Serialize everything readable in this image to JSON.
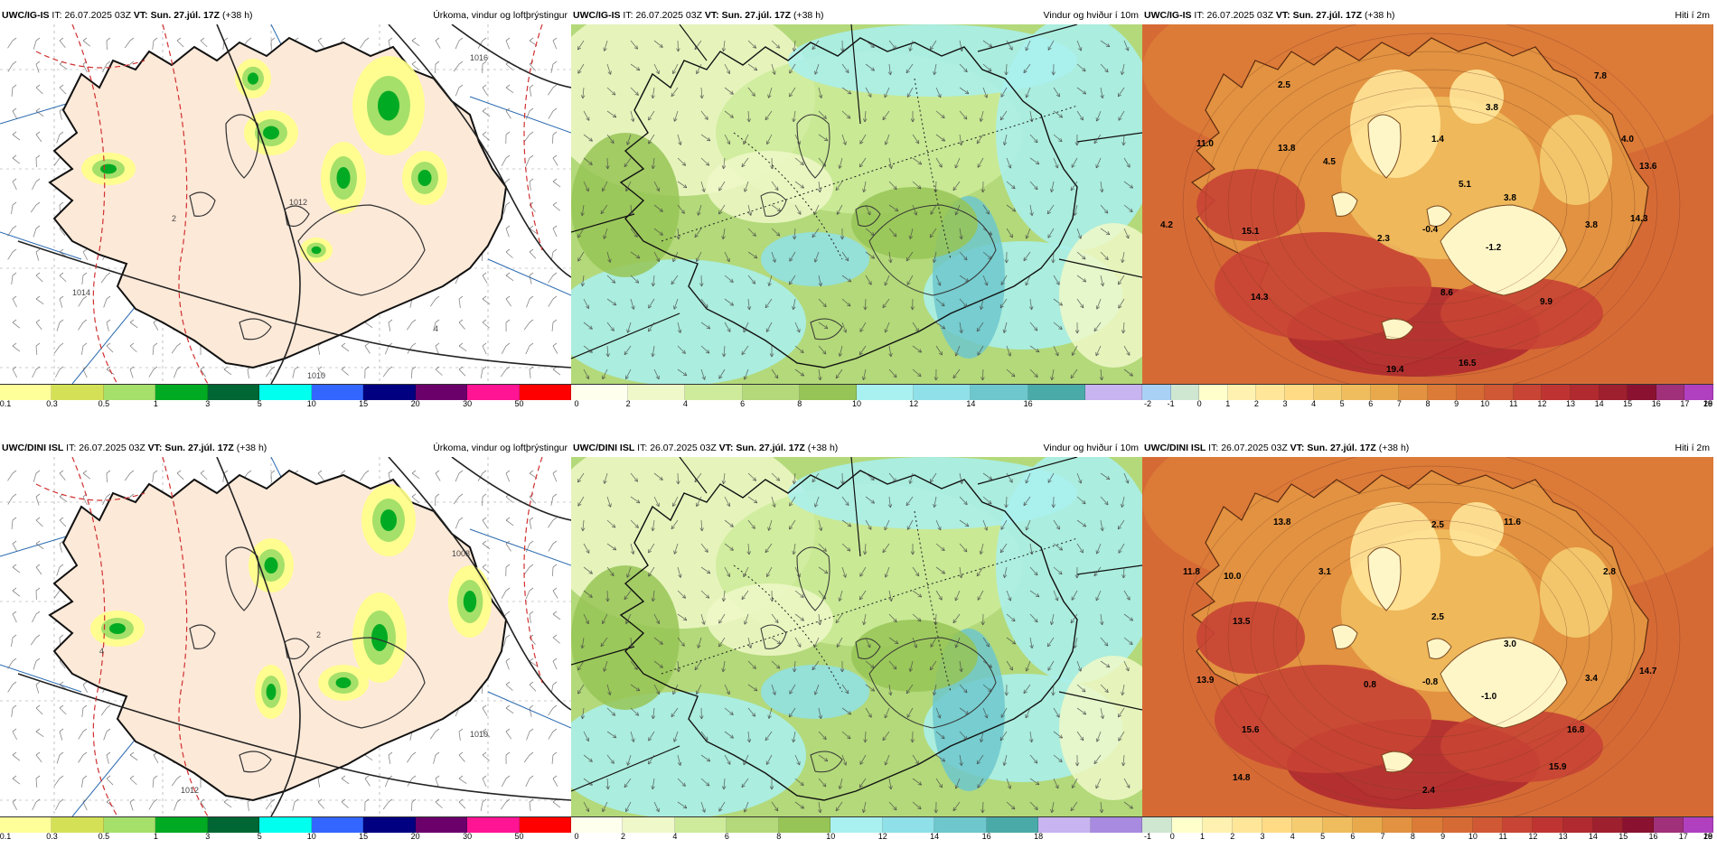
{
  "panels": [
    {
      "model": "UWC/IG-IS",
      "it_label": "IT:",
      "it": "26.07.2025 03Z",
      "vt_label": "VT:",
      "vt": "Sun. 27.júl. 17Z",
      "lead": "(+38 h)",
      "title": "Úrkoma, vindur og loftþrýstingur",
      "type": "precip",
      "colors": [
        "#ffff99",
        "#d4e157",
        "#a5e06a",
        "#00aa22",
        "#006633",
        "#00ffee",
        "#3366ff",
        "#000080",
        "#6b006b",
        "#ff1493",
        "#ff0000"
      ],
      "ticks": [
        "0.1",
        "0.3",
        "0.5",
        "1",
        "3",
        "5",
        "10",
        "15",
        "20",
        "30",
        "50"
      ],
      "map_labels": [
        {
          "text": "1012"
        },
        {
          "text": "1014"
        },
        {
          "text": "1010"
        },
        {
          "text": "1016"
        },
        {
          "text": "2"
        },
        {
          "text": "4"
        }
      ]
    },
    {
      "model": "UWC/IG-IS",
      "it_label": "IT:",
      "it": "26.07.2025 03Z",
      "vt_label": "VT:",
      "vt": "Sun. 27.júl. 17Z",
      "lead": "(+38 h)",
      "title": "Vindur og hviður í 10m",
      "type": "wind",
      "colors": [
        "#ffffee",
        "#eef8c8",
        "#cdeb9a",
        "#b3d97a",
        "#96c456",
        "#a9f0f0",
        "#8fe0e8",
        "#6dc7cc",
        "#4aaaa8",
        "#c8b4f0"
      ],
      "ticks": [
        "0",
        "2",
        "4",
        "6",
        "8",
        "10",
        "12",
        "14",
        "16"
      ]
    },
    {
      "model": "UWC/IG-IS",
      "it_label": "IT:",
      "it": "26.07.2025 03Z",
      "vt_label": "VT:",
      "vt": "Sun. 27.júl. 17Z",
      "lead": "(+38 h)",
      "title": "Hiti í 2m",
      "type": "temp",
      "colors": [
        "#a9d0f5",
        "#cfe6d0",
        "#ffffcc",
        "#fff2b0",
        "#ffe699",
        "#ffdb85",
        "#f5cc70",
        "#efbd5e",
        "#e8a94c",
        "#e29240",
        "#dc7a38",
        "#d66a35",
        "#d05835",
        "#c84434",
        "#bf3432",
        "#b02a30",
        "#9e1f2e",
        "#8a1230",
        "#a0307a",
        "#b040c0"
      ],
      "ticks": [
        "-2",
        "-1",
        "0",
        "1",
        "2",
        "3",
        "4",
        "5",
        "6",
        "7",
        "8",
        "9",
        "10",
        "11",
        "12",
        "13",
        "14",
        "15",
        "16",
        "17",
        "18",
        "19",
        "20"
      ],
      "map_labels": [
        {
          "text": "2.5"
        },
        {
          "text": "7.8"
        },
        {
          "text": "11.0"
        },
        {
          "text": "13.8"
        },
        {
          "text": "1.4"
        },
        {
          "text": "3.8"
        },
        {
          "text": "4.0"
        },
        {
          "text": "13.6"
        },
        {
          "text": "4.5"
        },
        {
          "text": "5.1"
        },
        {
          "text": "3.8"
        },
        {
          "text": "4.2"
        },
        {
          "text": "15.1"
        },
        {
          "text": "2.3"
        },
        {
          "text": "-0.4"
        },
        {
          "text": "-1.2"
        },
        {
          "text": "3.8"
        },
        {
          "text": "14.3"
        },
        {
          "text": "14.3"
        },
        {
          "text": "8.6"
        },
        {
          "text": "9.9"
        },
        {
          "text": "19.4"
        },
        {
          "text": "16.5"
        }
      ]
    },
    {
      "model": "UWC/DINI ISL",
      "it_label": "IT:",
      "it": "26.07.2025 03Z",
      "vt_label": "VT:",
      "vt": "Sun. 27.júl. 17Z",
      "lead": "(+38 h)",
      "title": "Úrkoma, vindur og loftþrýstingur",
      "type": "precip",
      "colors": [
        "#ffff99",
        "#d4e157",
        "#a5e06a",
        "#00aa22",
        "#006633",
        "#00ffee",
        "#3366ff",
        "#000080",
        "#6b006b",
        "#ff1493",
        "#ff0000"
      ],
      "ticks": [
        "0.1",
        "0.3",
        "0.5",
        "1",
        "3",
        "5",
        "10",
        "15",
        "20",
        "30",
        "50"
      ],
      "map_labels": [
        {
          "text": "1010"
        },
        {
          "text": "1012"
        },
        {
          "text": "1008"
        },
        {
          "text": "2"
        },
        {
          "text": "4"
        }
      ]
    },
    {
      "model": "UWC/DINI ISL",
      "it_label": "IT:",
      "it": "26.07.2025 03Z",
      "vt_label": "VT:",
      "vt": "Sun. 27.júl. 17Z",
      "lead": "(+38 h)",
      "title": "Vindur og hviður í 10m",
      "type": "wind",
      "colors": [
        "#ffffee",
        "#eef8c8",
        "#cdeb9a",
        "#b3d97a",
        "#96c456",
        "#a9f0f0",
        "#8fe0e8",
        "#6dc7cc",
        "#4aaaa8",
        "#c8b4f0",
        "#a88ae0"
      ],
      "ticks": [
        "0",
        "2",
        "4",
        "6",
        "8",
        "10",
        "12",
        "14",
        "16",
        "18"
      ]
    },
    {
      "model": "UWC/DINI ISL",
      "it_label": "IT:",
      "it": "26.07.2025 03Z",
      "vt_label": "VT:",
      "vt": "Sun. 27.júl. 17Z",
      "lead": "(+38 h)",
      "title": "Hiti í 2m",
      "type": "temp",
      "colors": [
        "#cfe6d0",
        "#ffffcc",
        "#fff2b0",
        "#ffe699",
        "#ffdb85",
        "#f5cc70",
        "#efbd5e",
        "#e8a94c",
        "#e29240",
        "#dc7a38",
        "#d66a35",
        "#d05835",
        "#c84434",
        "#bf3432",
        "#b02a30",
        "#9e1f2e",
        "#8a1230",
        "#a0307a",
        "#b040c0"
      ],
      "ticks": [
        "-1",
        "0",
        "1",
        "2",
        "3",
        "4",
        "5",
        "6",
        "7",
        "8",
        "9",
        "10",
        "11",
        "12",
        "13",
        "14",
        "15",
        "16",
        "17",
        "18",
        "19",
        "20"
      ],
      "map_labels": [
        {
          "text": "13.8"
        },
        {
          "text": "2.5"
        },
        {
          "text": "11.6"
        },
        {
          "text": "11.8"
        },
        {
          "text": "10.0"
        },
        {
          "text": "3.1"
        },
        {
          "text": "2.8"
        },
        {
          "text": "2.5"
        },
        {
          "text": "3.0"
        },
        {
          "text": "13.5"
        },
        {
          "text": "13.9"
        },
        {
          "text": "0.8"
        },
        {
          "text": "-0.8"
        },
        {
          "text": "-1.0"
        },
        {
          "text": "3.4"
        },
        {
          "text": "14.7"
        },
        {
          "text": "15.6"
        },
        {
          "text": "16.8"
        },
        {
          "text": "14.8"
        },
        {
          "text": "15.9"
        },
        {
          "text": "2.4"
        }
      ]
    }
  ]
}
